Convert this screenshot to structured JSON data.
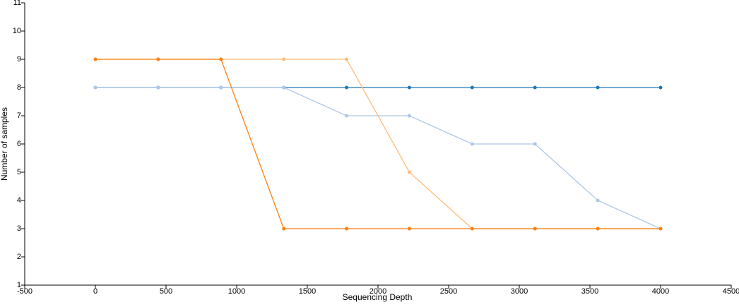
{
  "chart_data": {
    "type": "line",
    "x_label": "Sequencing Depth",
    "y_label": "Number of samples",
    "x": [
      0,
      444.4,
      888.9,
      1333.3,
      1777.8,
      2222.2,
      2666.7,
      3111.1,
      3555.6,
      4000
    ],
    "series": [
      {
        "color": "#1f77b4",
        "values": [
          8,
          8,
          8,
          8,
          8,
          8,
          8,
          8,
          8,
          8
        ]
      },
      {
        "color": "#aec7e8",
        "values": [
          8,
          8,
          8,
          8,
          7,
          7,
          6,
          6,
          4,
          3
        ]
      },
      {
        "color": "#ffbb78",
        "values": [
          9,
          9,
          9,
          9,
          9,
          5,
          3,
          3,
          3,
          3
        ]
      },
      {
        "color": "#ff7f0e",
        "values": [
          9,
          9,
          9,
          3,
          3,
          3,
          3,
          3,
          3,
          3
        ]
      }
    ],
    "xlim": [
      -500,
      4500
    ],
    "xticks": [
      -500,
      0,
      500,
      1000,
      1500,
      2000,
      2500,
      3000,
      3500,
      4000,
      4500
    ],
    "ylim": [
      1,
      11
    ],
    "yticks": [
      1,
      2,
      3,
      4,
      5,
      6,
      7,
      8,
      9,
      10,
      11
    ]
  }
}
